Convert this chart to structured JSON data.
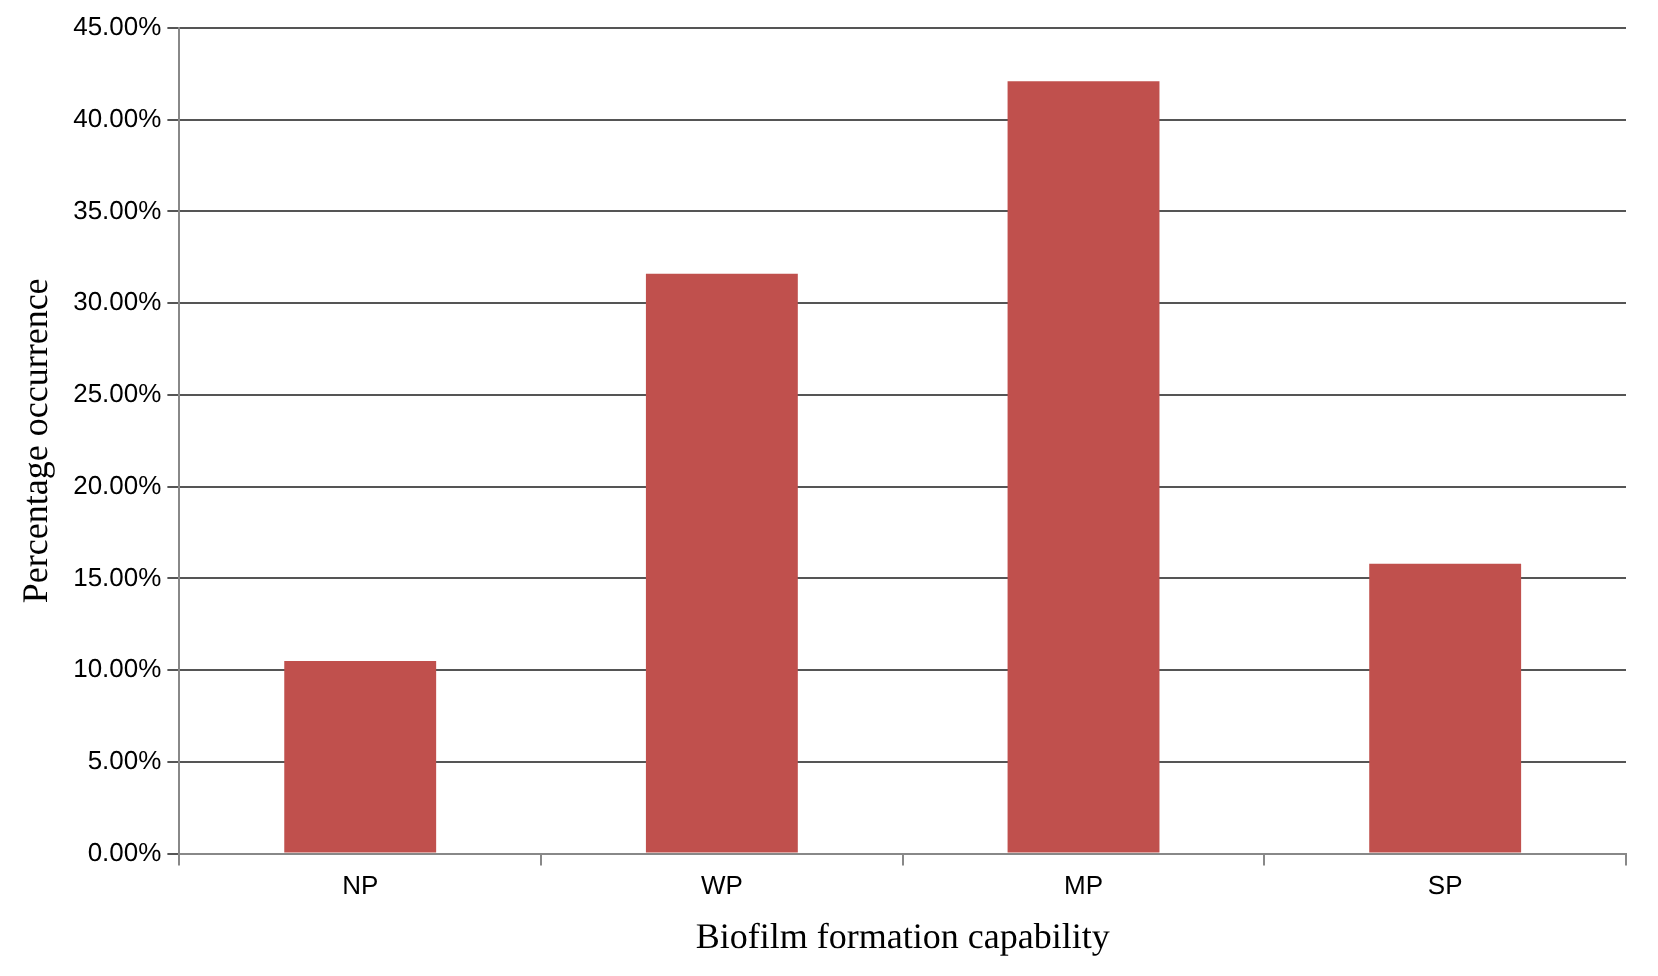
{
  "chart_data": {
    "type": "bar",
    "xlabel": "Biofilm formation capability",
    "ylabel": "Percentage occurrence",
    "categories": [
      "NP",
      "WP",
      "MP",
      "SP"
    ],
    "series": [
      {
        "color": "#c0504d",
        "values": [
          10.5,
          31.6,
          42.1,
          15.8
        ]
      }
    ],
    "ylim": [
      0,
      45
    ],
    "yticks": [
      {
        "value": 0,
        "label": "0.00%"
      },
      {
        "value": 5,
        "label": "5.00%"
      },
      {
        "value": 10,
        "label": "10.00%"
      },
      {
        "value": 15,
        "label": "15.00%"
      },
      {
        "value": 20,
        "label": "20.00%"
      },
      {
        "value": 25,
        "label": "25.00%"
      },
      {
        "value": 30,
        "label": "30.00%"
      },
      {
        "value": 35,
        "label": "35.00%"
      },
      {
        "value": 40,
        "label": "40.00%"
      },
      {
        "value": 45,
        "label": "45.00%"
      }
    ],
    "grid": "y",
    "legend": false
  }
}
